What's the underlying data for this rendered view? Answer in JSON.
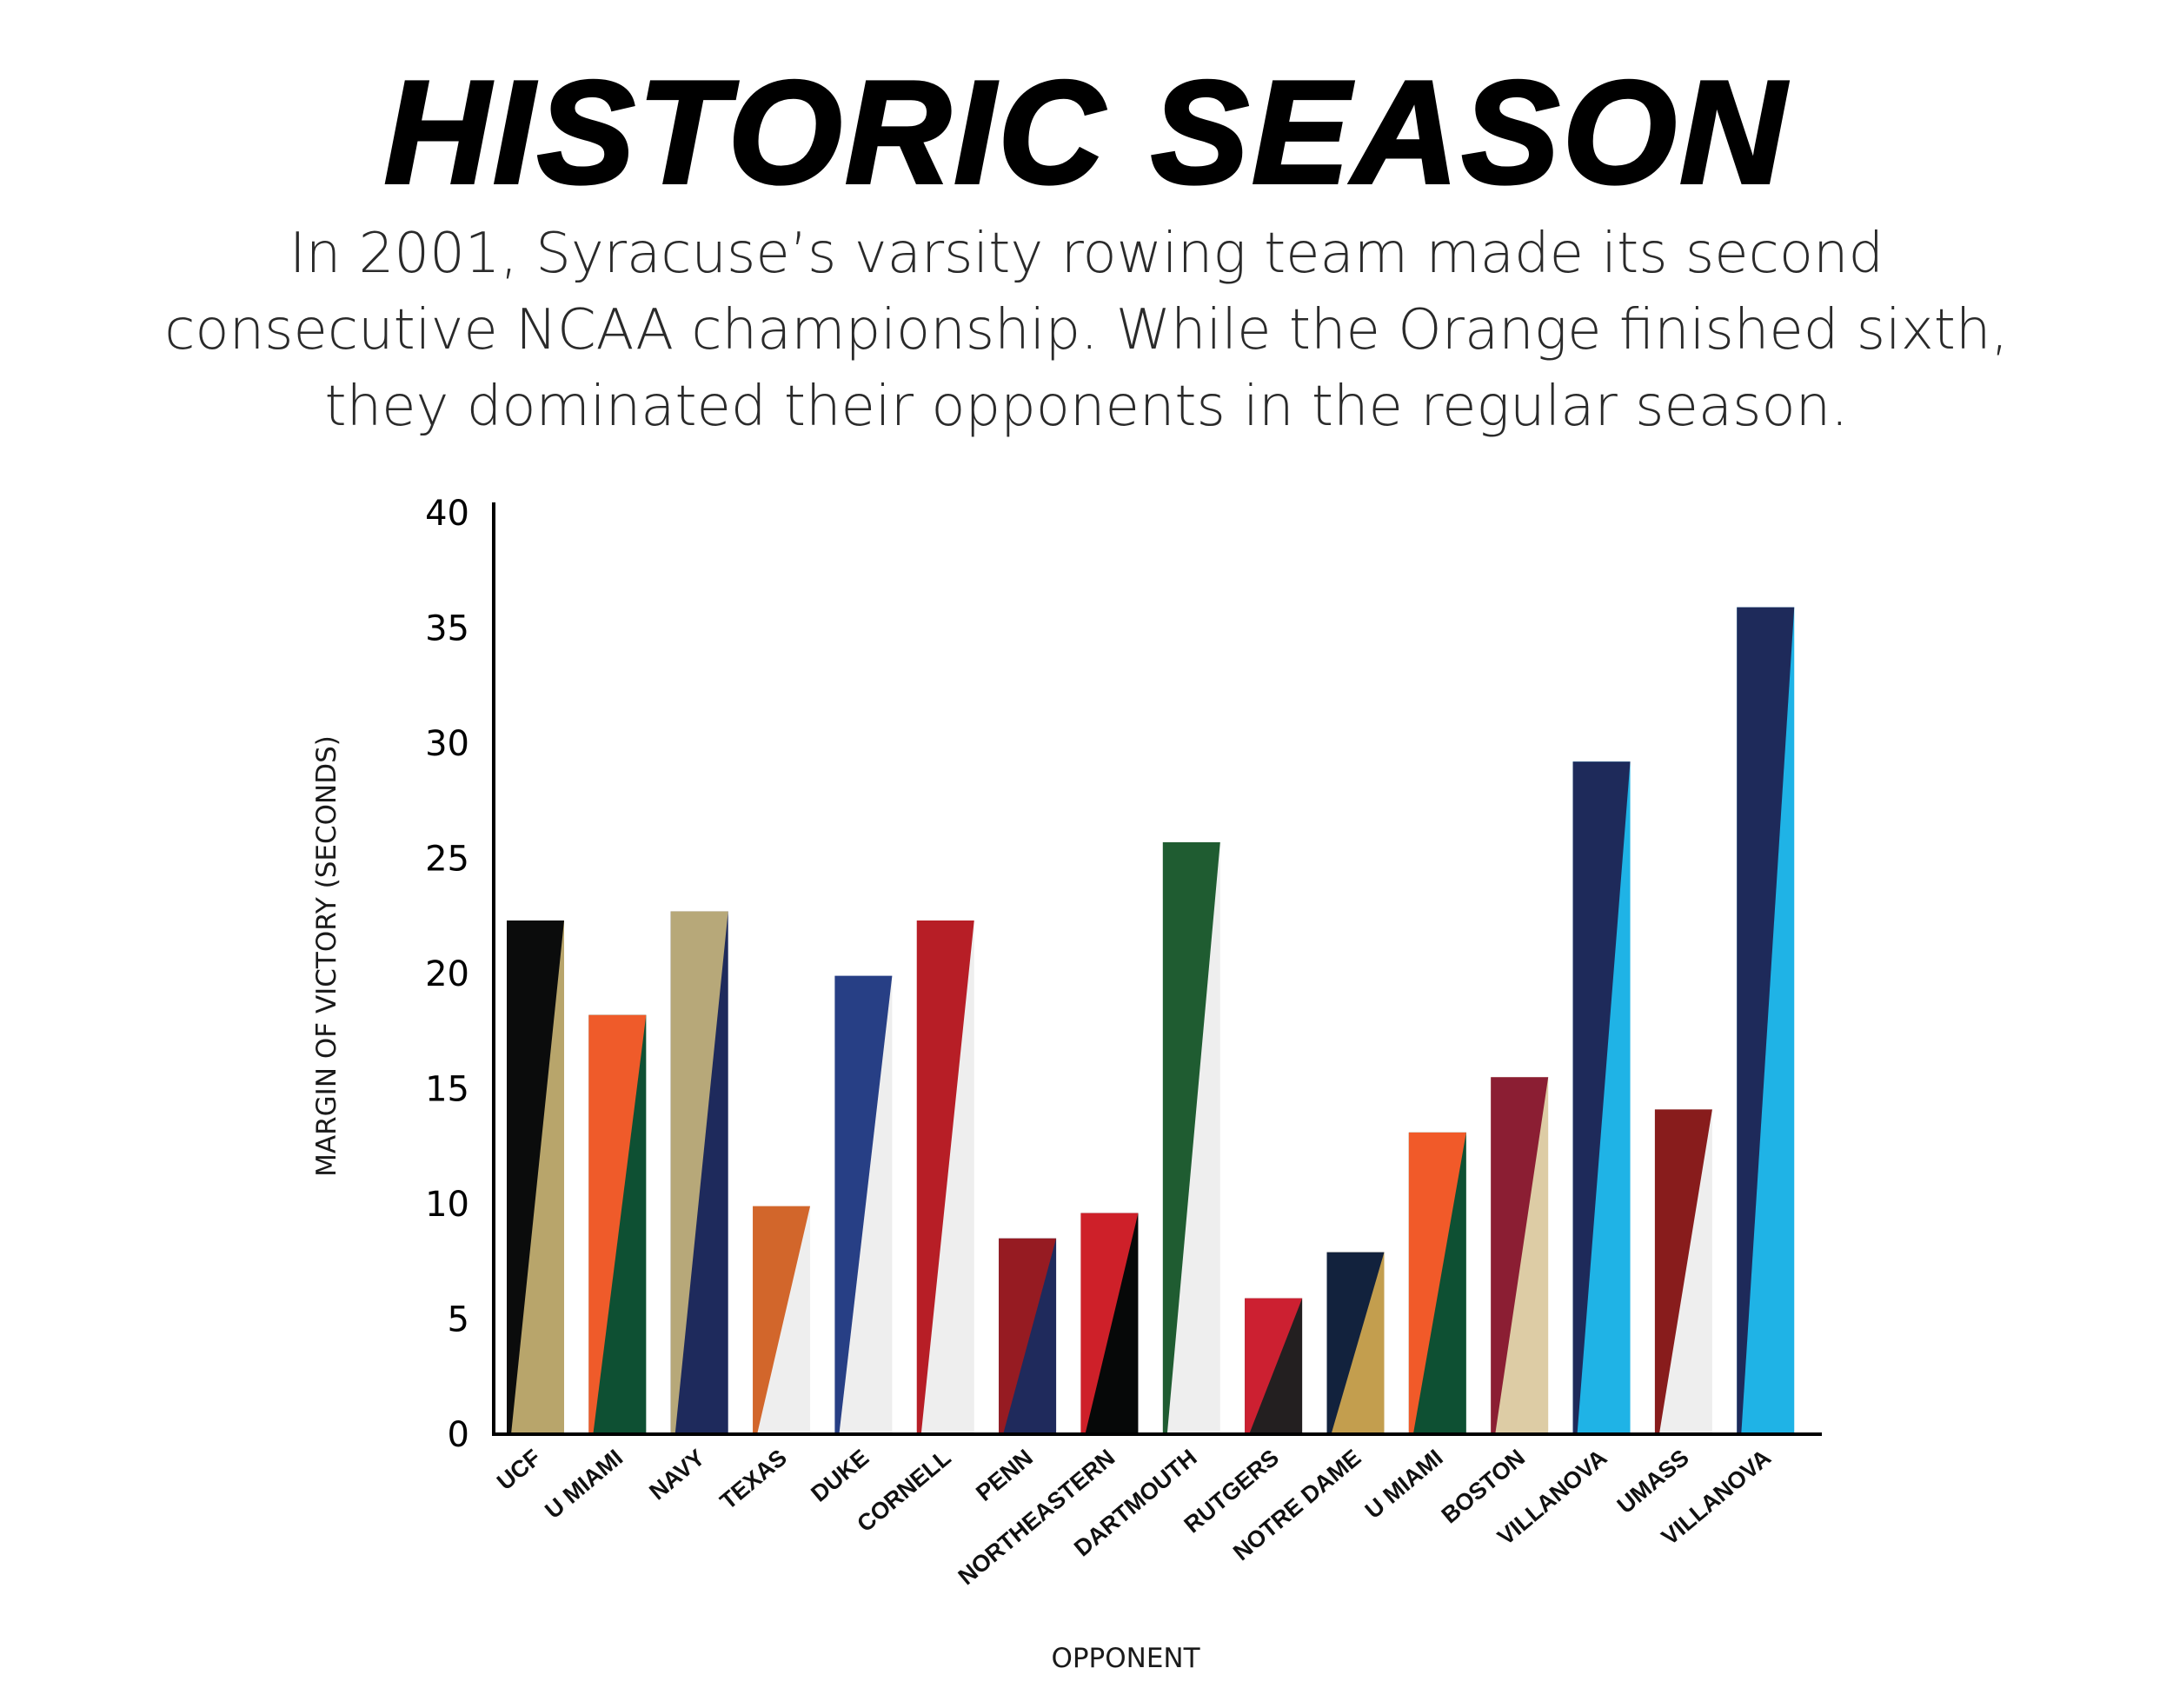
{
  "title": "HISTORIC SEASON",
  "subtitle": {
    "lines": [
      "In 2001, Syracuse’s varsity rowing team made its second",
      "consecutive NCAA championship. While the Orange finished sixth,",
      "they dominated their opponents in the regular season."
    ]
  },
  "chart_data": {
    "type": "bar",
    "title": "HISTORIC SEASON",
    "xlabel": "OPPONENT",
    "ylabel": "MARGIN OF VICTORY (SECONDS)",
    "ylim": [
      0,
      40
    ],
    "yticks": [
      0,
      5,
      10,
      15,
      20,
      25,
      30,
      35,
      40
    ],
    "grid": false,
    "legend": "none",
    "categories": [
      "UCF",
      "U MIAMI",
      "NAVY",
      "TEXAS",
      "DUKE",
      "CORNELL",
      "PENN",
      "NORTHEASTERN",
      "DARTMOUTH",
      "RUTGERS",
      "NOTRE DAME",
      "U MIAMI",
      "BOSTON",
      "VILLANOVA",
      "UMASS",
      "VILLANOVA"
    ],
    "values": [
      22.3,
      18.2,
      22.7,
      9.9,
      19.9,
      22.3,
      8.5,
      9.6,
      25.7,
      5.9,
      7.9,
      13.1,
      15.5,
      29.2,
      14.1,
      35.9
    ],
    "bar_colors": [
      {
        "primary": "#0b0c0c",
        "secondary": "#b8a56b"
      },
      {
        "primary": "#ef5b2a",
        "secondary": "#0e5033"
      },
      {
        "primary": "#b7a879",
        "secondary": "#1e2a5c"
      },
      {
        "primary": "#d2662b",
        "secondary": "#eeeeee"
      },
      {
        "primary": "#273f85",
        "secondary": "#eeeeee"
      },
      {
        "primary": "#b71e26",
        "secondary": "#eeeeee"
      },
      {
        "primary": "#961b22",
        "secondary": "#1f2a5c"
      },
      {
        "primary": "#ce2029",
        "secondary": "#060808"
      },
      {
        "primary": "#1f5c31",
        "secondary": "#eeeeee"
      },
      {
        "primary": "#cc2031",
        "secondary": "#231f20"
      },
      {
        "primary": "#12223d",
        "secondary": "#c39e4e"
      },
      {
        "primary": "#f15a29",
        "secondary": "#0e5033"
      },
      {
        "primary": "#8b1e33",
        "secondary": "#ddcca5"
      },
      {
        "primary": "#1e2a5a",
        "secondary": "#1fb3e6"
      },
      {
        "primary": "#881c1c",
        "secondary": "#eeeeee"
      },
      {
        "primary": "#1e2a5a",
        "secondary": "#1fb3e6"
      }
    ]
  }
}
